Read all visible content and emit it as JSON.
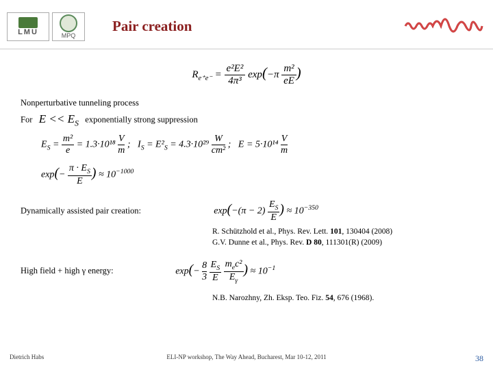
{
  "header": {
    "title": "Pair creation",
    "title_color": "#8b2020",
    "logo_lmu_label": "LMU",
    "logo_mpq_label": "MPQ",
    "wave_color": "#c03030"
  },
  "content": {
    "formula_main_html": "R<sub>e⁺e⁻</sub> = <span style='display:inline-block;vertical-align:middle;text-align:center;'><span style='display:block;border-bottom:1px solid #000;padding:0 3px;'>e²E²</span><span style='display:block;'>4π³</span></span> exp<span style='font-size:1.4em;'>(</span>−π <span style='display:inline-block;vertical-align:middle;text-align:center;'><span style='display:block;border-bottom:1px solid #000;padding:0 3px;'>m²</span><span style='display:block;'>eE</span></span><span style='font-size:1.4em;'>)</span>",
    "line_nonpert": "Nonperturbative tunneling process",
    "line_for_prefix": "For",
    "line_for_cond_html": "E << E<sub>S</sub>",
    "line_for_suffix": "exponentially strong suppression",
    "formula_es_html": "E<sub>S</sub> = <span style='display:inline-block;vertical-align:middle;text-align:center;'><span style='display:block;border-bottom:1px solid #000;padding:0 2px;'>m²</span><span style='display:block;'>e</span></span> = 1.3·10¹⁸ <span style='display:inline-block;vertical-align:middle;text-align:center;'><span style='display:block;border-bottom:1px solid #000;'>V</span><span style='display:block;'>m</span></span> ;&nbsp;&nbsp; I<sub>S</sub> = E²<sub>S</sub> = 4.3·10²⁹ <span style='display:inline-block;vertical-align:middle;text-align:center;'><span style='display:block;border-bottom:1px solid #000;'>W</span><span style='display:block;'>cm²</span></span> ;&nbsp;&nbsp; E = 5·10¹⁴ <span style='display:inline-block;vertical-align:middle;text-align:center;'><span style='display:block;border-bottom:1px solid #000;'>V</span><span style='display:block;'>m</span></span>",
    "formula_exp_html": "exp<span style='font-size:1.4em;'>(</span>− <span style='display:inline-block;vertical-align:middle;text-align:center;'><span style='display:block;border-bottom:1px solid #000;padding:0 2px;'>π · E<sub>S</sub></span><span style='display:block;'>E</span></span><span style='font-size:1.4em;'>)</span> ≈ 10<sup>−1000</sup>",
    "line_dyn": "Dynamically assisted pair creation:",
    "formula_dyn_html": "exp<span style='font-size:1.4em;'>(</span>−(π − 2) <span style='display:inline-block;vertical-align:middle;text-align:center;'><span style='display:block;border-bottom:1px solid #000;padding:0 2px;'>E<sub>S</sub></span><span style='display:block;'>E</span></span><span style='font-size:1.4em;'>)</span> ≈ 10<sup>−350</sup>",
    "ref1_html": "R. Schützhold et al., Phys. Rev. Lett. <b>101</b>, 130404 (2008)",
    "ref2_html": "G.V. Dunne et al., Phys. Rev. <b>D 80</b>, 111301(R) (2009)",
    "line_high": "High field + high γ energy:",
    "formula_high_html": "exp<span style='font-size:1.4em;'>(</span>− <span style='display:inline-block;vertical-align:middle;text-align:center;'><span style='display:block;border-bottom:1px solid #000;'>8</span><span style='display:block;'>3</span></span> <span style='display:inline-block;vertical-align:middle;text-align:center;'><span style='display:block;border-bottom:1px solid #000;padding:0 2px;'>E<sub>S</sub></span><span style='display:block;'>E</span></span> <span style='display:inline-block;vertical-align:middle;text-align:center;'><span style='display:block;border-bottom:1px solid #000;padding:0 2px;'>m<sub>e</sub>c²</span><span style='display:block;'>E<sub>γ</sub></span></span><span style='font-size:1.4em;'>)</span> ≈ 10<sup>−1</sup>",
    "ref3_html": "N.B. Narozhny, Zh. Eksp. Teo. Fiz. <b>54</b>, 676 (1968)."
  },
  "footer": {
    "left": "Dietrich Habs",
    "center": "ELI-NP workshop, The Way Ahead, Bucharest, Mar 10-12, 2011",
    "page": "38"
  }
}
